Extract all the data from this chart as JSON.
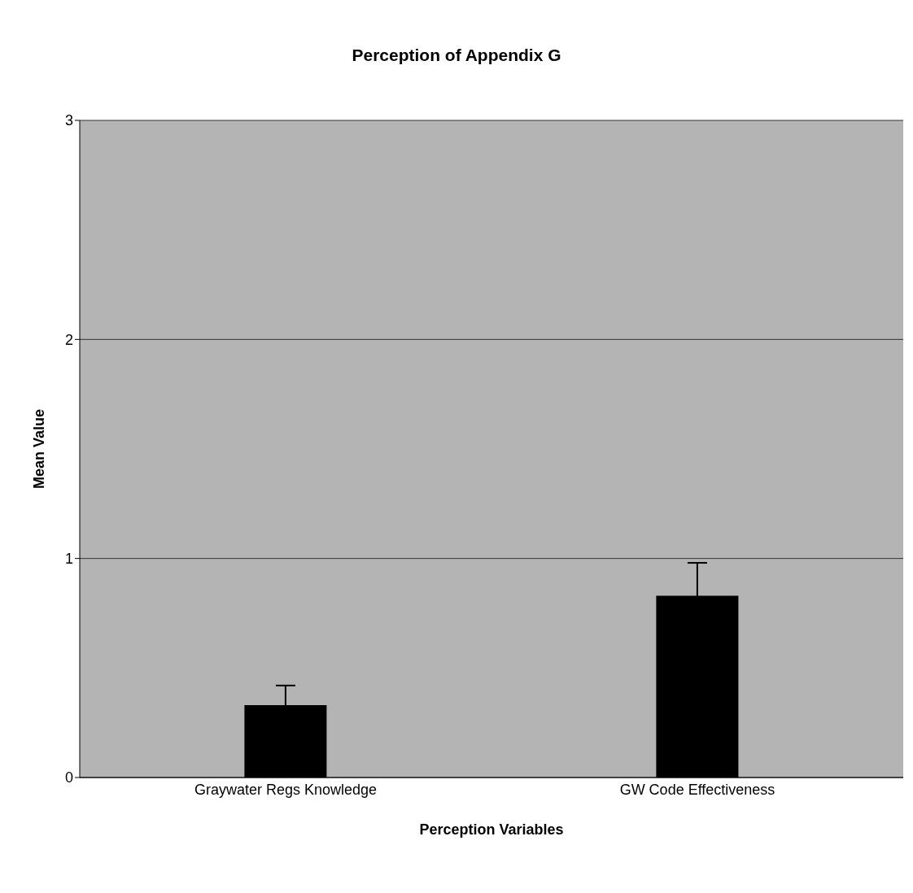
{
  "chart_data": {
    "type": "bar",
    "title": "Perception of Appendix G",
    "xlabel": "Perception Variables",
    "ylabel": "Mean Value",
    "categories": [
      "Graywater Regs Knowledge",
      "GW Code Effectiveness"
    ],
    "values": [
      0.33,
      0.83
    ],
    "errors": [
      0.09,
      0.15
    ],
    "color": "#000000",
    "ylim": [
      0,
      3
    ],
    "yticks": [
      0,
      1,
      2,
      3
    ],
    "grid": "y"
  }
}
